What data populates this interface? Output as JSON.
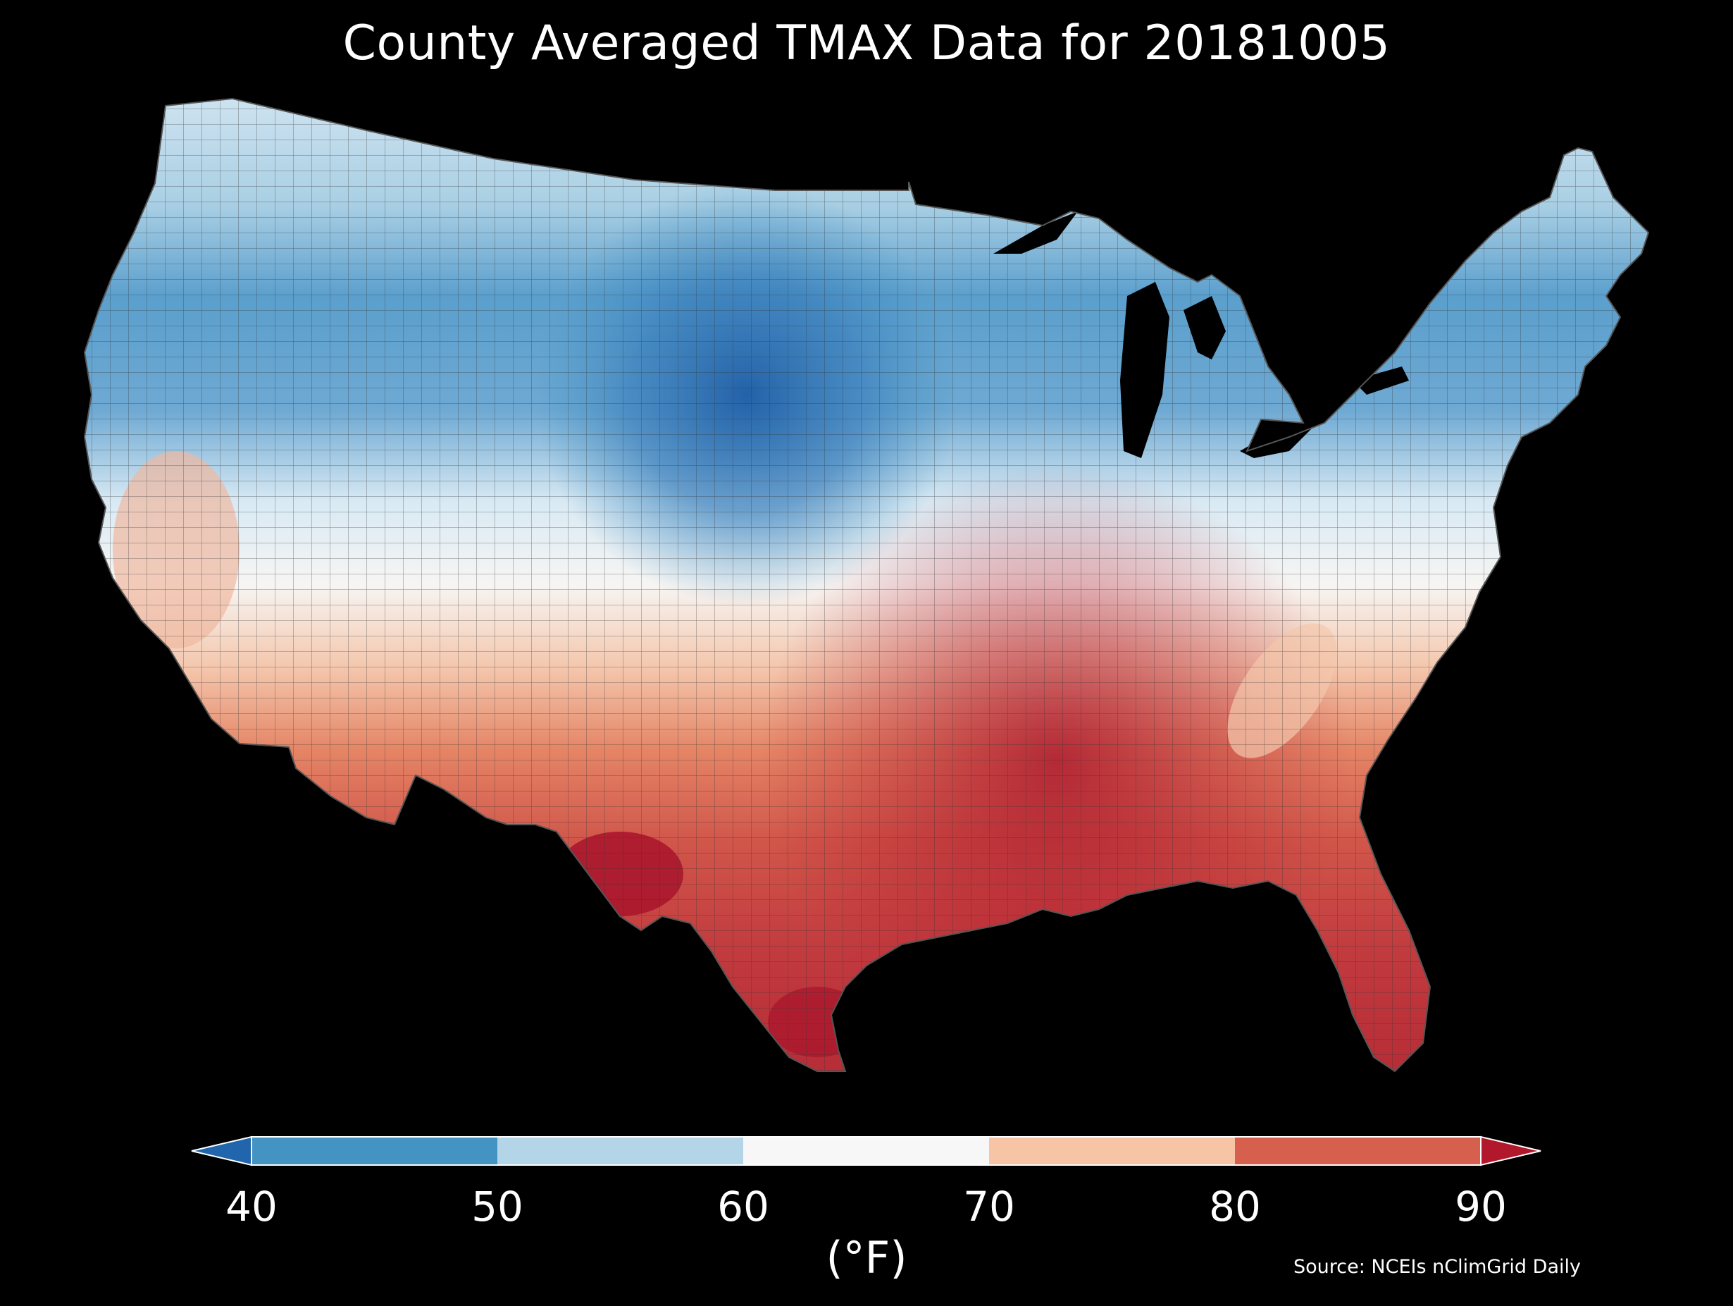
{
  "title": "County Averaged TMAX Data for 20181005",
  "colorbar": {
    "units": "(°F)",
    "ticks": [
      "40",
      "50",
      "60",
      "70",
      "80",
      "90"
    ],
    "bins": [
      {
        "range": "<40",
        "color": "#2166ac"
      },
      {
        "range": "40-50",
        "color": "#4393c3"
      },
      {
        "range": "50-60",
        "color": "#b4d5e7"
      },
      {
        "range": "60-70",
        "color": "#f7f7f7"
      },
      {
        "range": "70-80",
        "color": "#f7c4a6"
      },
      {
        "range": "80-90",
        "color": "#d6604d"
      },
      {
        "range": ">90",
        "color": "#b2182b"
      }
    ]
  },
  "source": "Source: NCEIs nClimGrid Daily",
  "map": {
    "region": "Contiguous United States (county level)",
    "background": "#000000",
    "county_border_color": "#222222"
  }
}
